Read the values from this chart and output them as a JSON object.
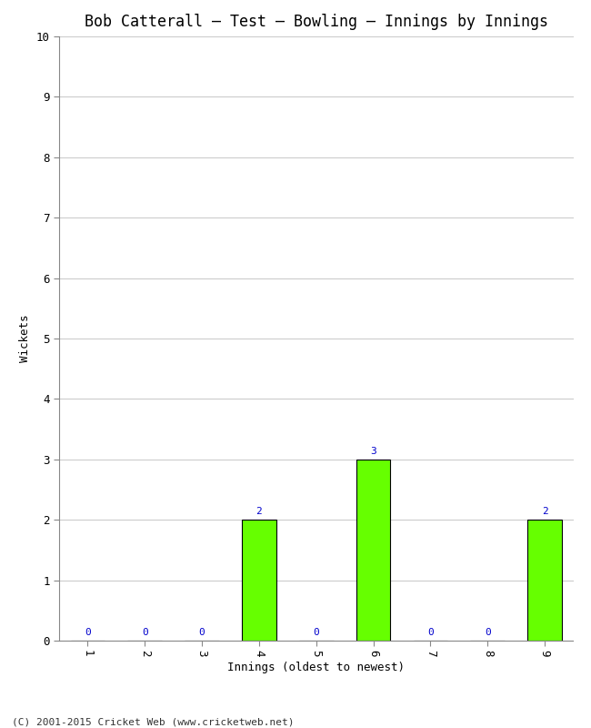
{
  "title": "Bob Catterall – Test – Bowling – Innings by Innings",
  "xlabel": "Innings (oldest to newest)",
  "ylabel": "Wickets",
  "categories": [
    "1",
    "2",
    "3",
    "4",
    "5",
    "6",
    "7",
    "8",
    "9"
  ],
  "values": [
    0,
    0,
    0,
    2,
    0,
    3,
    0,
    0,
    2
  ],
  "bar_color": "#66ff00",
  "bar_edge_color": "#000000",
  "label_color": "#0000cc",
  "ylim": [
    0,
    10
  ],
  "yticks": [
    0,
    1,
    2,
    3,
    4,
    5,
    6,
    7,
    8,
    9,
    10
  ],
  "background_color": "#ffffff",
  "plot_bg_color": "#ffffff",
  "footer": "(C) 2001-2015 Cricket Web (www.cricketweb.net)",
  "title_fontsize": 12,
  "axis_label_fontsize": 9,
  "tick_fontsize": 9,
  "annotation_fontsize": 8,
  "footer_fontsize": 8
}
